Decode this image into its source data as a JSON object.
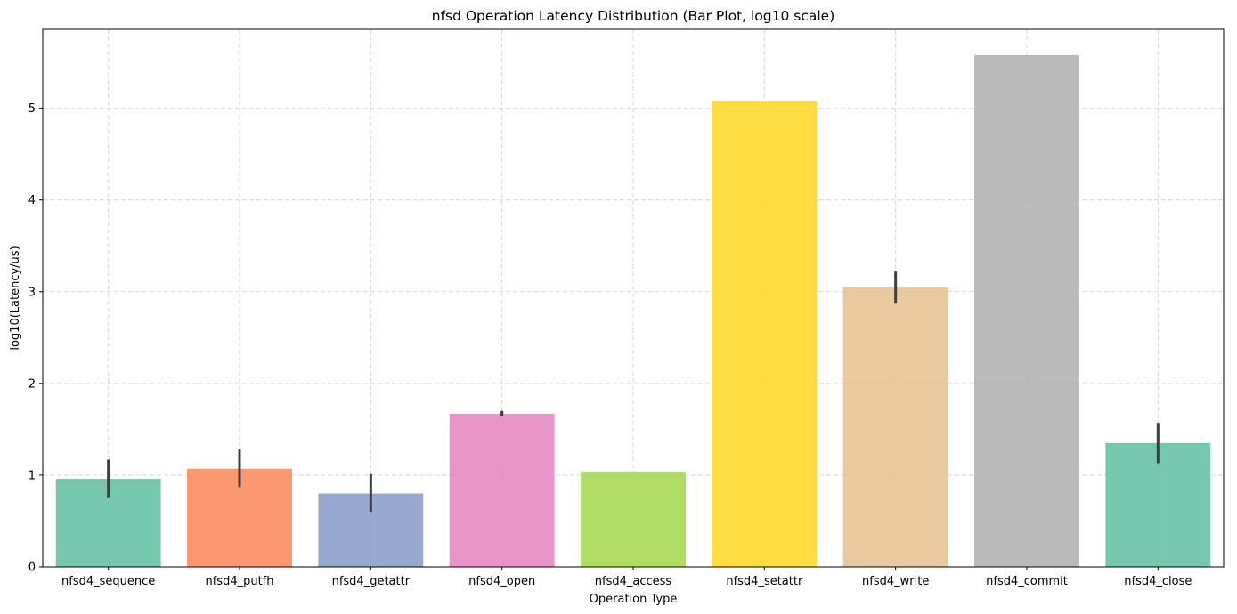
{
  "chart_data": {
    "type": "bar",
    "title": "nfsd Operation Latency Distribution (Bar Plot, log10 scale)",
    "xlabel": "Operation Type",
    "ylabel": "log10(Latency/us)",
    "categories": [
      "nfsd4_sequence",
      "nfsd4_putfh",
      "nfsd4_getattr",
      "nfsd4_open",
      "nfsd4_access",
      "nfsd4_setattr",
      "nfsd4_write",
      "nfsd4_commit",
      "nfsd4_close"
    ],
    "values": [
      0.96,
      1.07,
      0.8,
      1.67,
      1.04,
      5.08,
      3.05,
      5.58,
      1.35
    ],
    "error_low": [
      0.75,
      0.87,
      0.6,
      1.64,
      null,
      null,
      2.87,
      null,
      1.13
    ],
    "error_high": [
      1.17,
      1.28,
      1.01,
      1.7,
      null,
      null,
      3.22,
      null,
      1.57
    ],
    "colors": [
      "#66c2a5",
      "#fc8d62",
      "#8da0cb",
      "#e78ac3",
      "#a6d854",
      "#ffd92f",
      "#e5c494",
      "#b3b3b3",
      "#66c2a5"
    ],
    "yticks": [
      0,
      1,
      2,
      3,
      4,
      5
    ],
    "ylim": [
      0,
      5.86
    ],
    "grid": true
  }
}
